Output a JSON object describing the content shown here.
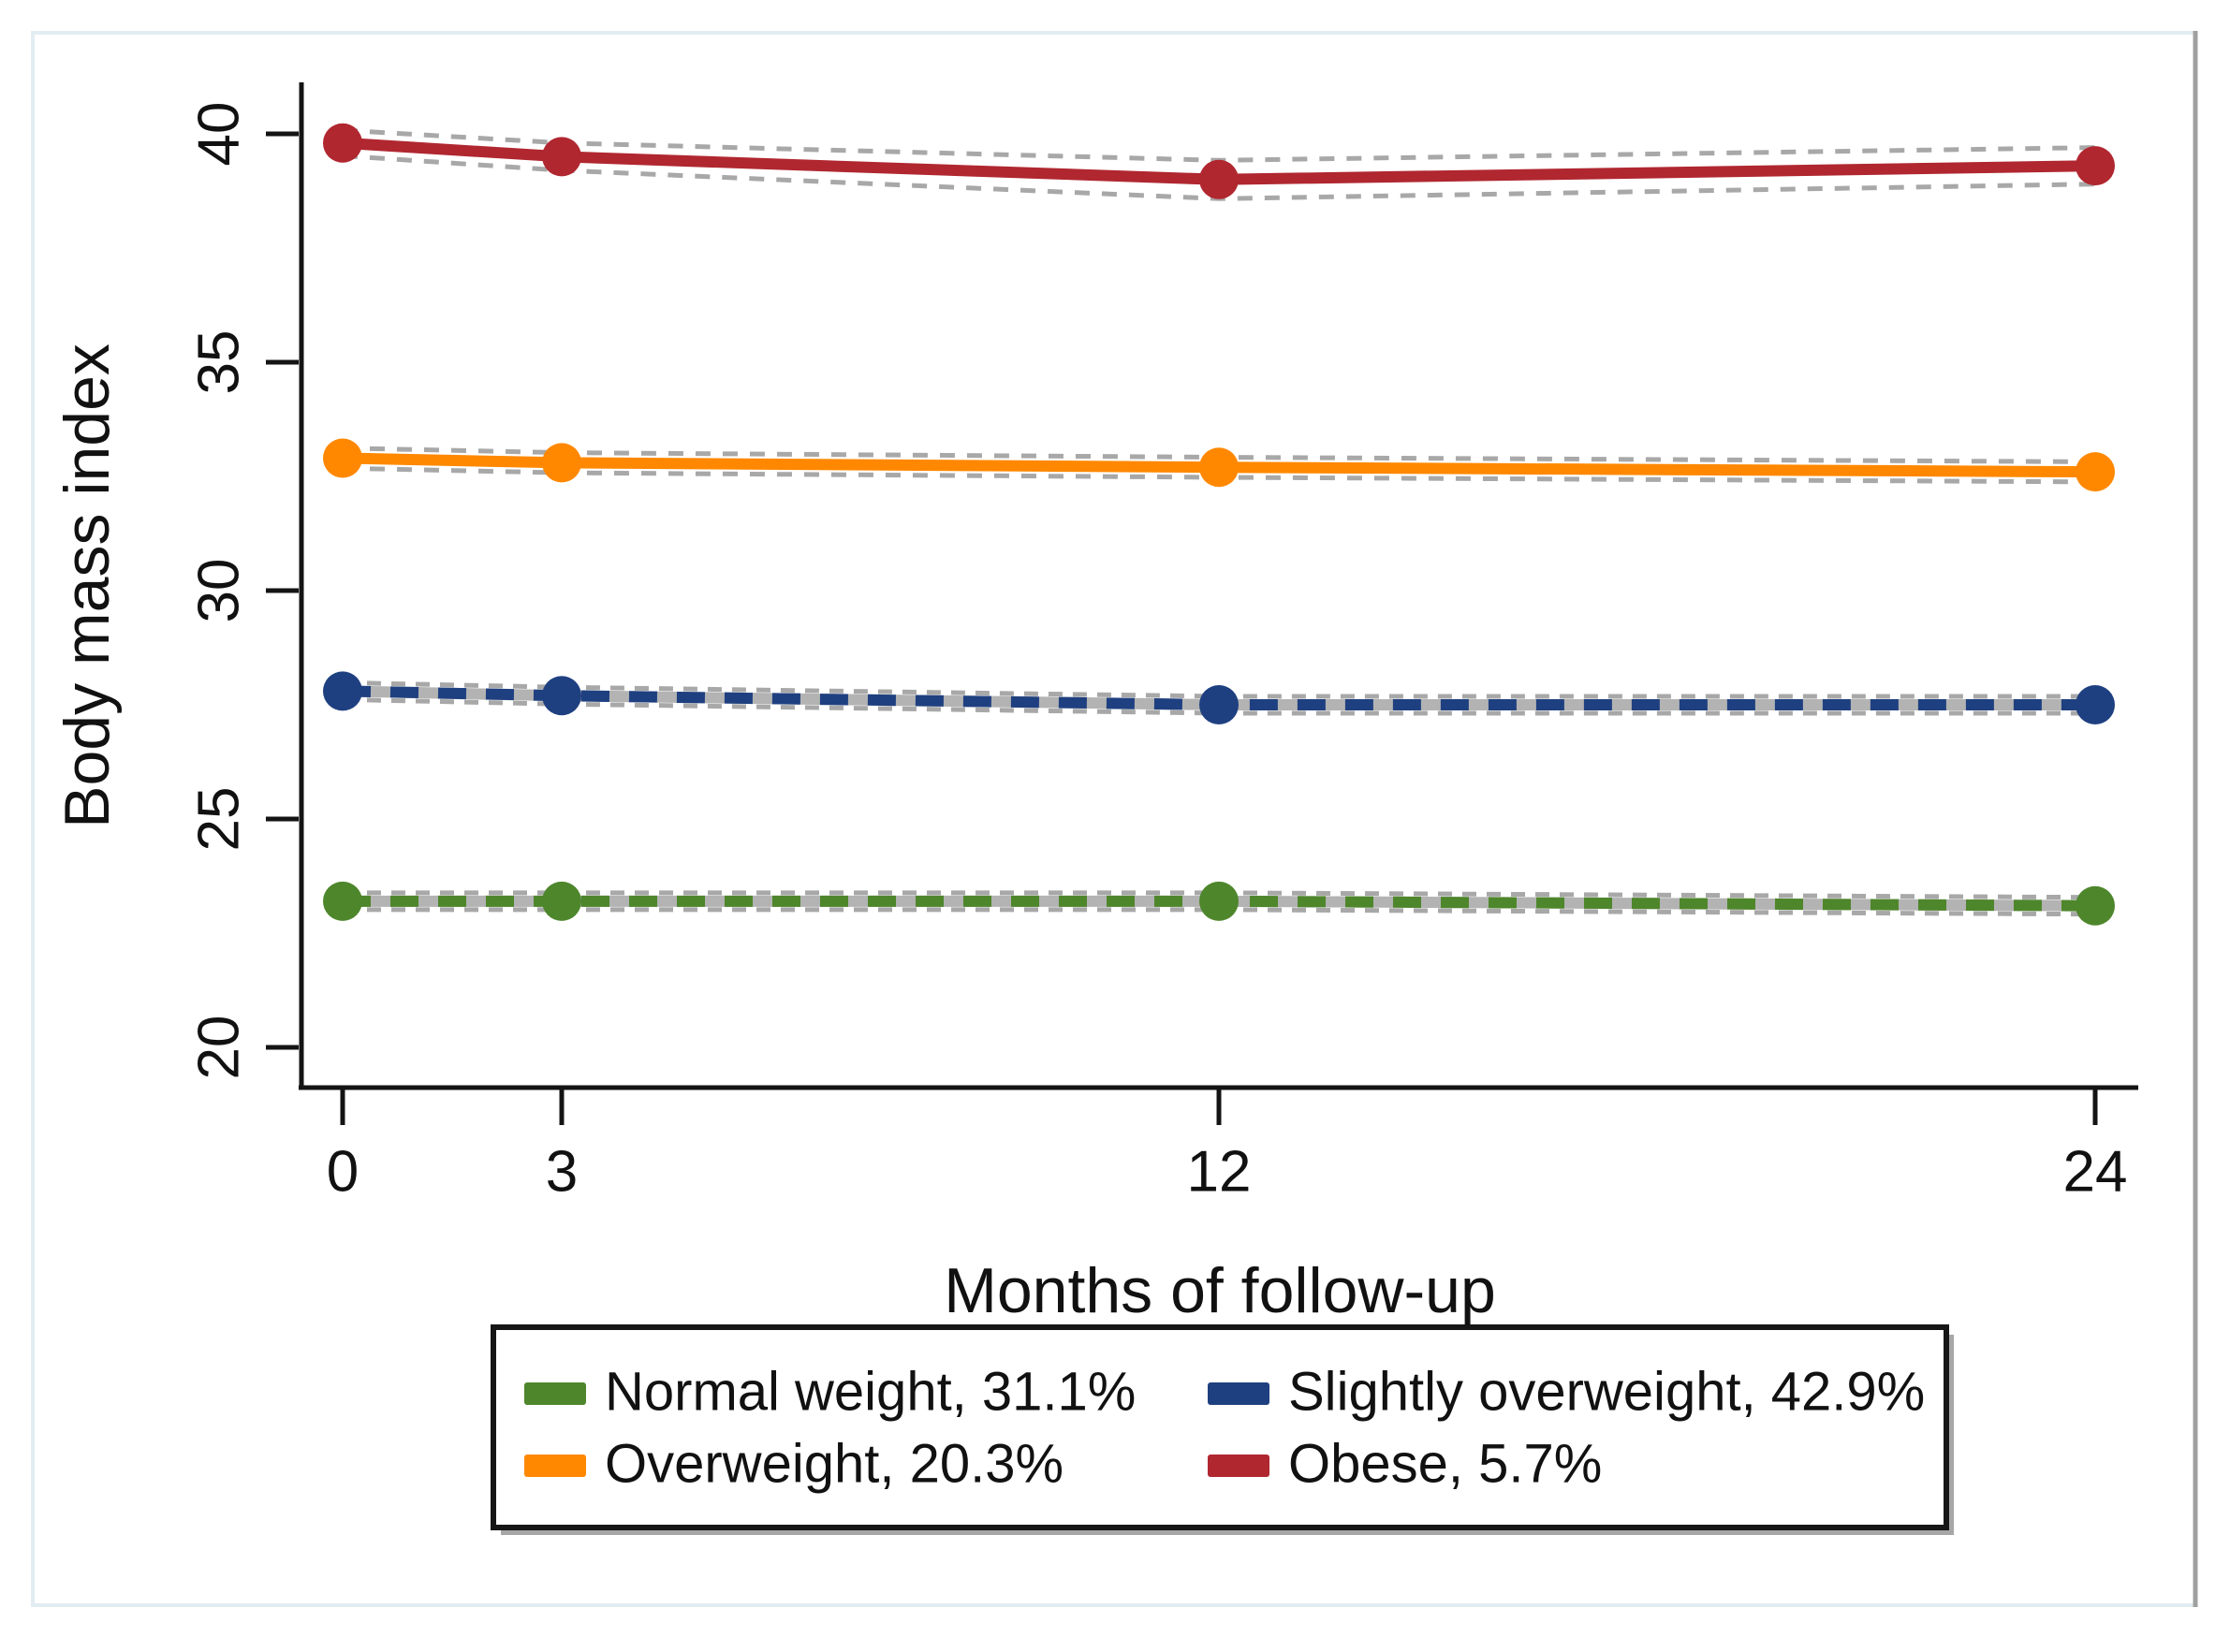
{
  "figure": {
    "background": "#ffffff",
    "frame_color": "#e2edf3",
    "frame_right_color": "#a0a0a0",
    "axis_color": "#141414",
    "ci_color": "#a8a8a8",
    "gray_underlay_color": "#b3b3b3",
    "legend_border_color": "#161616",
    "legend_shadow_color": "#a6a6a6"
  },
  "chart_data": {
    "type": "line",
    "title": "",
    "xlabel": "Months of follow-up",
    "ylabel": "Body mass index",
    "x": [
      0,
      3,
      12,
      24
    ],
    "xticks": [
      "0",
      "3",
      "12",
      "24"
    ],
    "yticks": [
      "20",
      "25",
      "30",
      "35",
      "40"
    ],
    "ylim": [
      19.1,
      41.1
    ],
    "xlim": [
      -0.6,
      24.6
    ],
    "grid": false,
    "legend_position": "below-chart, boxed, 2 columns",
    "confidence_bands": "dashed gray lines around each series",
    "series": [
      {
        "name": "Normal weight, 31.1%",
        "color": "#4e862c",
        "style": "dashed-over-gray",
        "values": [
          23.2,
          23.2,
          23.2,
          23.1
        ],
        "ci": 0.18
      },
      {
        "name": "Overweight, 20.3%",
        "color": "#ff8800",
        "style": "solid",
        "values": [
          32.9,
          32.8,
          32.7,
          32.6
        ],
        "ci": 0.22
      },
      {
        "name": "Slightly overweight, 42.9%",
        "color": "#1f4080",
        "style": "dashed-over-gray",
        "values": [
          27.8,
          27.7,
          27.5,
          27.5
        ],
        "ci": 0.18
      },
      {
        "name": "Obese, 5.7%",
        "color": "#b02730",
        "style": "solid",
        "values": [
          39.8,
          39.5,
          39.0,
          39.3
        ],
        "ci": [
          0.28,
          0.3,
          0.42,
          0.4
        ]
      }
    ],
    "legend_order": [
      0,
      2,
      1,
      3
    ]
  }
}
